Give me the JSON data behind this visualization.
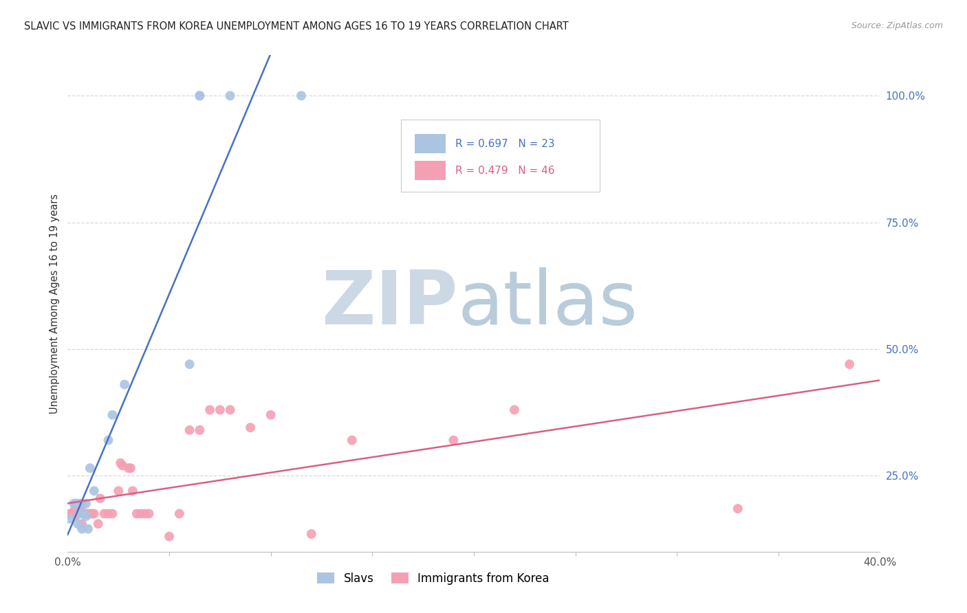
{
  "title": "SLAVIC VS IMMIGRANTS FROM KOREA UNEMPLOYMENT AMONG AGES 16 TO 19 YEARS CORRELATION CHART",
  "source": "Source: ZipAtlas.com",
  "ylabel": "Unemployment Among Ages 16 to 19 years",
  "ytick_labels": [
    "100.0%",
    "75.0%",
    "50.0%",
    "25.0%"
  ],
  "ytick_values": [
    1.0,
    0.75,
    0.5,
    0.25
  ],
  "xlim": [
    0.0,
    0.4
  ],
  "ylim": [
    0.1,
    1.08
  ],
  "slavs_R": 0.697,
  "slavs_N": 23,
  "korea_R": 0.479,
  "korea_N": 46,
  "background_color": "#ffffff",
  "grid_color": "#d8d8d8",
  "slavs_color": "#aac4e2",
  "slavs_line_color": "#4472c4",
  "korea_color": "#f4a0b4",
  "korea_line_color": "#d96080",
  "slavs_x": [
    0.001,
    0.003,
    0.004,
    0.004,
    0.005,
    0.006,
    0.006,
    0.007,
    0.007,
    0.008,
    0.009,
    0.009,
    0.01,
    0.011,
    0.013,
    0.02,
    0.022,
    0.028,
    0.06,
    0.065,
    0.065,
    0.08,
    0.115
  ],
  "slavs_y": [
    0.165,
    0.195,
    0.195,
    0.195,
    0.155,
    0.175,
    0.195,
    0.145,
    0.195,
    0.175,
    0.17,
    0.195,
    0.145,
    0.265,
    0.22,
    0.32,
    0.37,
    0.43,
    0.47,
    1.0,
    1.0,
    1.0,
    1.0
  ],
  "korea_x": [
    0.001,
    0.002,
    0.003,
    0.004,
    0.004,
    0.005,
    0.006,
    0.007,
    0.007,
    0.008,
    0.008,
    0.009,
    0.01,
    0.011,
    0.012,
    0.013,
    0.015,
    0.016,
    0.018,
    0.02,
    0.022,
    0.025,
    0.026,
    0.027,
    0.03,
    0.031,
    0.032,
    0.034,
    0.036,
    0.038,
    0.04,
    0.05,
    0.055,
    0.06,
    0.065,
    0.07,
    0.075,
    0.08,
    0.09,
    0.1,
    0.12,
    0.14,
    0.19,
    0.22,
    0.33,
    0.385
  ],
  "korea_y": [
    0.175,
    0.175,
    0.18,
    0.17,
    0.175,
    0.175,
    0.18,
    0.155,
    0.18,
    0.175,
    0.175,
    0.175,
    0.175,
    0.175,
    0.175,
    0.175,
    0.155,
    0.205,
    0.175,
    0.175,
    0.175,
    0.22,
    0.275,
    0.27,
    0.265,
    0.265,
    0.22,
    0.175,
    0.175,
    0.175,
    0.175,
    0.13,
    0.175,
    0.34,
    0.34,
    0.38,
    0.38,
    0.38,
    0.345,
    0.37,
    0.135,
    0.32,
    0.32,
    0.38,
    0.185,
    0.47
  ]
}
